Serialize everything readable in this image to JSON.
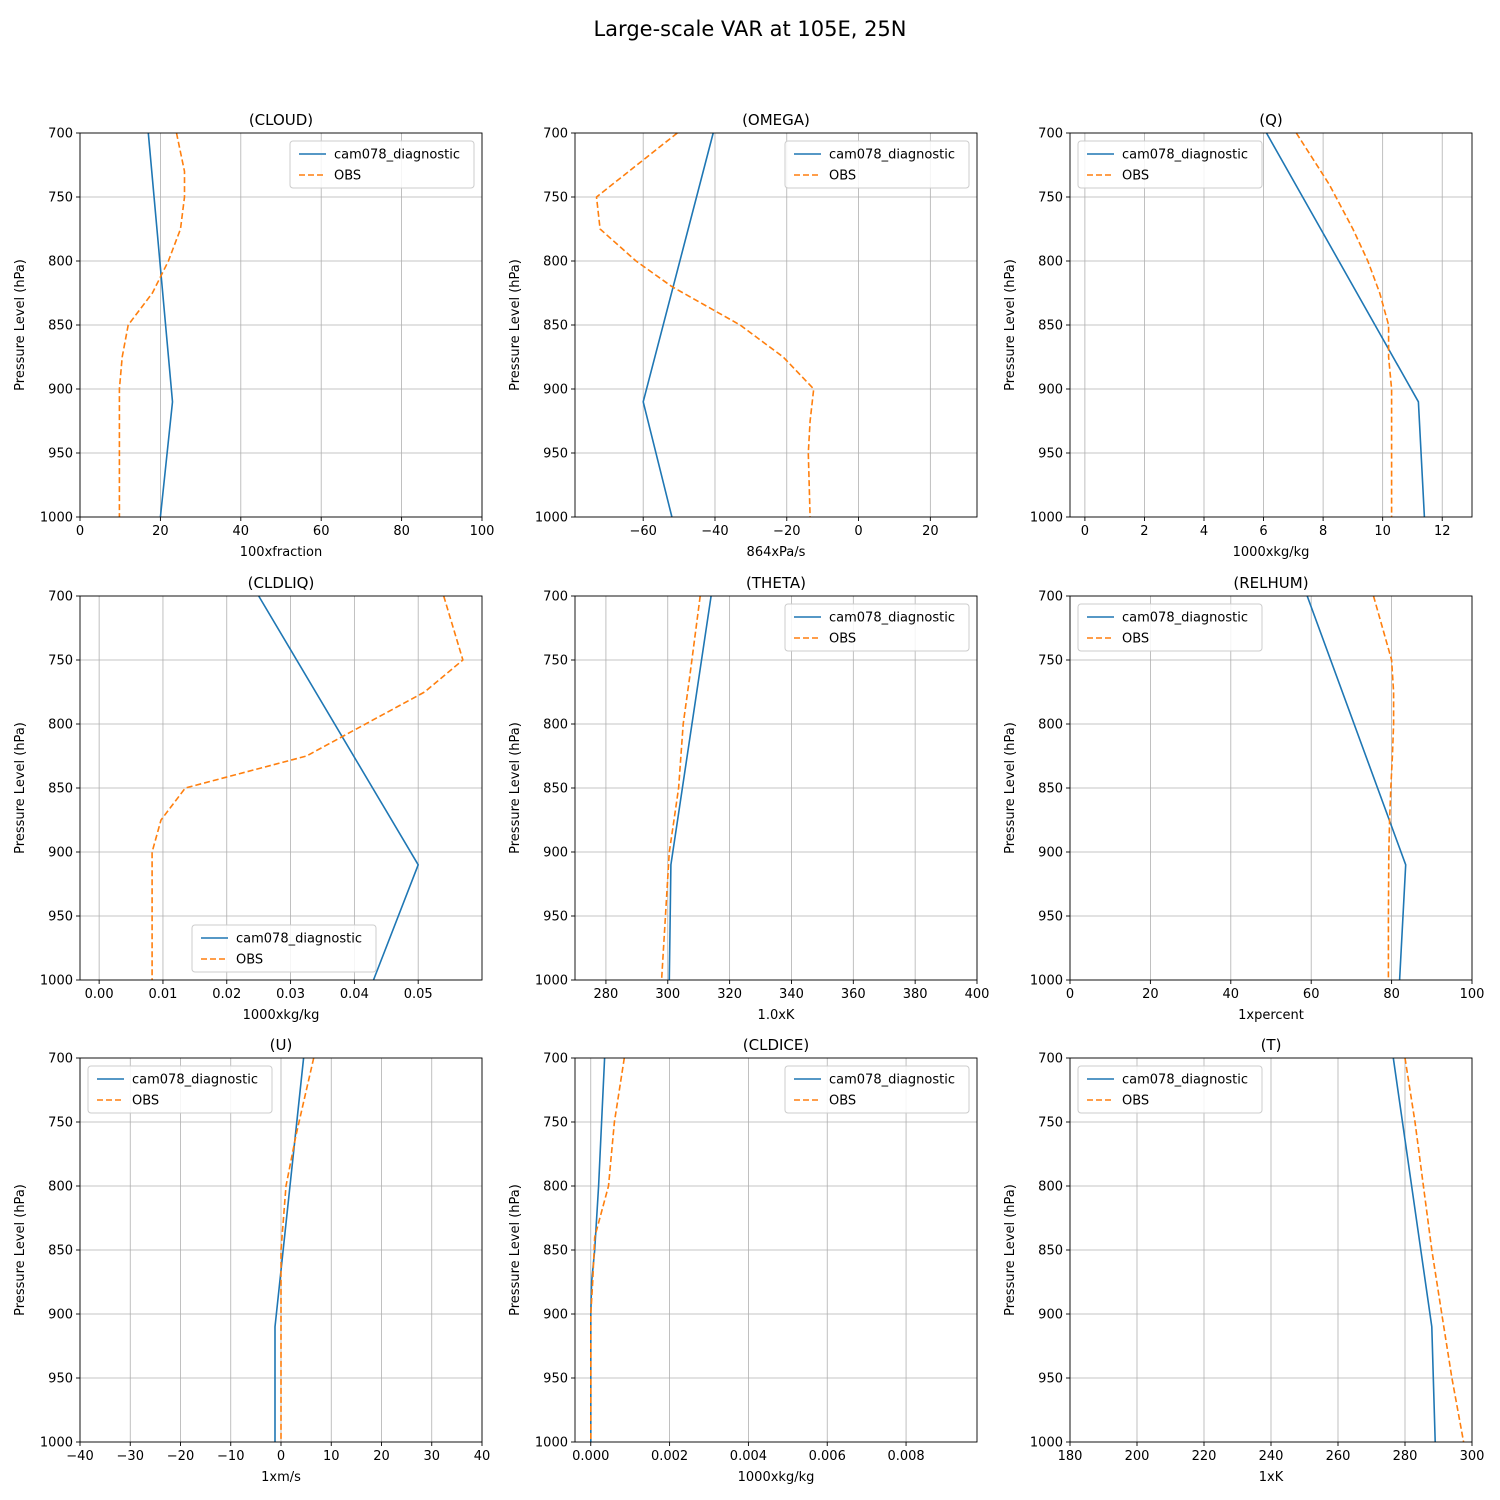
{
  "figure": {
    "title": "Large-scale VAR at 105E, 25N"
  },
  "chart_data": [
    {
      "type": "line",
      "title": "(CLOUD)",
      "xlabel": "100xfraction",
      "ylabel": "Pressure Level (hPa)",
      "xlim": [
        0,
        100
      ],
      "ylim": [
        1000,
        700
      ],
      "y_inverted": true,
      "xticks": [
        0,
        20,
        40,
        60,
        80,
        100
      ],
      "xtick_labels": [
        "0",
        "20",
        "40",
        "60",
        "80",
        "100"
      ],
      "yticks": [
        700,
        750,
        800,
        850,
        900,
        950,
        1000
      ],
      "ytick_labels": [
        "700",
        "750",
        "800",
        "850",
        "900",
        "950",
        "1000"
      ],
      "grid": true,
      "legend": "upper-right",
      "series": [
        {
          "name": "cam078_diagnostic",
          "color": "#1f77b4",
          "style": "solid",
          "x": [
            17,
            23,
            20
          ],
          "y": [
            700,
            910,
            1000
          ]
        },
        {
          "name": "OBS",
          "color": "#ff7f0e",
          "style": "dashed",
          "x": [
            24,
            26,
            26,
            25,
            22,
            18,
            12,
            10.5,
            9.8,
            9.8,
            9.8,
            9.8
          ],
          "y": [
            700,
            730,
            750,
            775,
            800,
            825,
            850,
            875,
            900,
            925,
            950,
            1000
          ]
        }
      ]
    },
    {
      "type": "line",
      "title": "(OMEGA)",
      "xlabel": "864xPa/s",
      "ylabel": "Pressure Level (hPa)",
      "xlim": [
        -79,
        33
      ],
      "ylim": [
        1000,
        700
      ],
      "y_inverted": true,
      "xticks": [
        -60,
        -40,
        -20,
        0,
        20
      ],
      "xtick_labels": [
        "−60",
        "−40",
        "−20",
        "0",
        "20"
      ],
      "yticks": [
        700,
        750,
        800,
        850,
        900,
        950,
        1000
      ],
      "ytick_labels": [
        "700",
        "750",
        "800",
        "850",
        "900",
        "950",
        "1000"
      ],
      "grid": true,
      "legend": "upper-right",
      "series": [
        {
          "name": "cam078_diagnostic",
          "color": "#1f77b4",
          "style": "solid",
          "x": [
            -40.5,
            -60,
            -52
          ],
          "y": [
            700,
            910,
            1000
          ]
        },
        {
          "name": "OBS",
          "color": "#ff7f0e",
          "style": "dashed",
          "x": [
            -50.5,
            -73,
            -72,
            -62,
            -52,
            -33,
            -21,
            -12.5,
            -13.5,
            -14,
            -13.5
          ],
          "y": [
            700,
            750,
            775,
            800,
            820,
            850,
            875,
            900,
            925,
            950,
            1000
          ]
        }
      ]
    },
    {
      "type": "line",
      "title": "(Q)",
      "xlabel": "1000xkg/kg",
      "ylabel": "Pressure Level (hPa)",
      "xlim": [
        -0.5,
        13
      ],
      "ylim": [
        1000,
        700
      ],
      "y_inverted": true,
      "xticks": [
        0,
        2,
        4,
        6,
        8,
        10,
        12
      ],
      "xtick_labels": [
        "0",
        "2",
        "4",
        "6",
        "8",
        "10",
        "12"
      ],
      "yticks": [
        700,
        750,
        800,
        850,
        900,
        950,
        1000
      ],
      "ytick_labels": [
        "700",
        "750",
        "800",
        "850",
        "900",
        "950",
        "1000"
      ],
      "grid": true,
      "legend": "upper-left",
      "series": [
        {
          "name": "cam078_diagnostic",
          "color": "#1f77b4",
          "style": "solid",
          "x": [
            6.1,
            11.2,
            11.4
          ],
          "y": [
            700,
            910,
            1000
          ]
        },
        {
          "name": "OBS",
          "color": "#ff7f0e",
          "style": "dashed",
          "x": [
            7.1,
            8.2,
            9.0,
            9.5,
            9.9,
            10.2,
            10.2,
            10.3,
            10.3,
            10.3
          ],
          "y": [
            700,
            740,
            775,
            800,
            825,
            850,
            875,
            900,
            950,
            1000
          ]
        }
      ]
    },
    {
      "type": "line",
      "title": "(CLDLIQ)",
      "xlabel": "1000xkg/kg",
      "ylabel": "Pressure Level (hPa)",
      "xlim": [
        -0.003,
        0.06
      ],
      "ylim": [
        1000,
        700
      ],
      "y_inverted": true,
      "xticks": [
        0,
        0.01,
        0.02,
        0.03,
        0.04,
        0.05
      ],
      "xtick_labels": [
        "0.00",
        "0.01",
        "0.02",
        "0.03",
        "0.04",
        "0.05"
      ],
      "yticks": [
        700,
        750,
        800,
        850,
        900,
        950,
        1000
      ],
      "ytick_labels": [
        "700",
        "750",
        "800",
        "850",
        "900",
        "950",
        "1000"
      ],
      "grid": true,
      "legend": "lower-center",
      "series": [
        {
          "name": "cam078_diagnostic",
          "color": "#1f77b4",
          "style": "solid",
          "x": [
            0.025,
            0.05,
            0.043
          ],
          "y": [
            700,
            910,
            1000
          ]
        },
        {
          "name": "OBS",
          "color": "#ff7f0e",
          "style": "dashed",
          "x": [
            0.054,
            0.057,
            0.051,
            0.0325,
            0.0135,
            0.0097,
            0.0083,
            0.0083,
            0.0083
          ],
          "y": [
            700,
            750,
            775,
            825,
            850,
            875,
            900,
            950,
            1000
          ]
        }
      ]
    },
    {
      "type": "line",
      "title": "(THETA)",
      "xlabel": "1.0xK",
      "ylabel": "Pressure Level (hPa)",
      "xlim": [
        270,
        400
      ],
      "ylim": [
        1000,
        700
      ],
      "y_inverted": true,
      "xticks": [
        280,
        300,
        320,
        340,
        360,
        380,
        400
      ],
      "xtick_labels": [
        "280",
        "300",
        "320",
        "340",
        "360",
        "380",
        "400"
      ],
      "yticks": [
        700,
        750,
        800,
        850,
        900,
        950,
        1000
      ],
      "ytick_labels": [
        "700",
        "750",
        "800",
        "850",
        "900",
        "950",
        "1000"
      ],
      "grid": true,
      "legend": "upper-right",
      "series": [
        {
          "name": "cam078_diagnostic",
          "color": "#1f77b4",
          "style": "solid",
          "x": [
            314,
            301,
            300.5
          ],
          "y": [
            700,
            910,
            1000
          ]
        },
        {
          "name": "OBS",
          "color": "#ff7f0e",
          "style": "dashed",
          "x": [
            310.5,
            307,
            305,
            303.5,
            302,
            300.5,
            298
          ],
          "y": [
            700,
            765,
            800,
            850,
            875,
            900,
            1000
          ]
        }
      ]
    },
    {
      "type": "line",
      "title": "(RELHUM)",
      "xlabel": "1xpercent",
      "ylabel": "Pressure Level (hPa)",
      "xlim": [
        0,
        100
      ],
      "ylim": [
        1000,
        700
      ],
      "y_inverted": true,
      "xticks": [
        0,
        20,
        40,
        60,
        80,
        100
      ],
      "xtick_labels": [
        "0",
        "20",
        "40",
        "60",
        "80",
        "100"
      ],
      "yticks": [
        700,
        750,
        800,
        850,
        900,
        950,
        1000
      ],
      "ytick_labels": [
        "700",
        "750",
        "800",
        "850",
        "900",
        "950",
        "1000"
      ],
      "grid": true,
      "legend": "upper-left",
      "series": [
        {
          "name": "cam078_diagnostic",
          "color": "#1f77b4",
          "style": "solid",
          "x": [
            59,
            83.5,
            82
          ],
          "y": [
            700,
            910,
            1000
          ]
        },
        {
          "name": "OBS",
          "color": "#ff7f0e",
          "style": "dashed",
          "x": [
            75.5,
            80,
            80.5,
            80.5,
            80.2,
            79.8,
            79.5,
            79.3,
            79.2,
            79.2
          ],
          "y": [
            700,
            750,
            775,
            800,
            825,
            850,
            875,
            900,
            950,
            1000
          ]
        }
      ]
    },
    {
      "type": "line",
      "title": "(U)",
      "xlabel": "1xm/s",
      "ylabel": "Pressure Level (hPa)",
      "xlim": [
        -40,
        40
      ],
      "ylim": [
        1000,
        700
      ],
      "y_inverted": true,
      "xticks": [
        -40,
        -30,
        -20,
        -10,
        0,
        10,
        20,
        30,
        40
      ],
      "xtick_labels": [
        "−40",
        "−30",
        "−20",
        "−10",
        "0",
        "10",
        "20",
        "30",
        "40"
      ],
      "yticks": [
        700,
        750,
        800,
        850,
        900,
        950,
        1000
      ],
      "ytick_labels": [
        "700",
        "750",
        "800",
        "850",
        "900",
        "950",
        "1000"
      ],
      "grid": true,
      "legend": "upper-left",
      "series": [
        {
          "name": "cam078_diagnostic",
          "color": "#1f77b4",
          "style": "solid",
          "x": [
            4.5,
            -1.2,
            -1.2
          ],
          "y": [
            700,
            910,
            1000
          ]
        },
        {
          "name": "OBS",
          "color": "#ff7f0e",
          "style": "dashed",
          "x": [
            6.5,
            3,
            1,
            0,
            0,
            0,
            0
          ],
          "y": [
            700,
            760,
            800,
            850,
            900,
            950,
            1000
          ]
        }
      ]
    },
    {
      "type": "line",
      "title": "(CLDICE)",
      "xlabel": "1000xkg/kg",
      "ylabel": "Pressure Level (hPa)",
      "xlim": [
        -0.0004,
        0.0098
      ],
      "ylim": [
        1000,
        700
      ],
      "y_inverted": true,
      "xticks": [
        0,
        0.002,
        0.004,
        0.006,
        0.008
      ],
      "xtick_labels": [
        "0.000",
        "0.002",
        "0.004",
        "0.006",
        "0.008"
      ],
      "yticks": [
        700,
        750,
        800,
        850,
        900,
        950,
        1000
      ],
      "ytick_labels": [
        "700",
        "750",
        "800",
        "850",
        "900",
        "950",
        "1000"
      ],
      "grid": true,
      "legend": "upper-right",
      "series": [
        {
          "name": "cam078_diagnostic",
          "color": "#1f77b4",
          "style": "solid",
          "x": [
            0.00035,
            0.0002,
            0.0001,
            2e-05,
            0,
            0,
            0
          ],
          "y": [
            700,
            800,
            850,
            875,
            900,
            950,
            1000
          ]
        },
        {
          "name": "OBS",
          "color": "#ff7f0e",
          "style": "dashed",
          "x": [
            0.00085,
            0.0006,
            0.00045,
            0.0001,
            5e-05,
            0,
            0,
            0
          ],
          "y": [
            700,
            750,
            800,
            840,
            875,
            900,
            950,
            1000
          ]
        }
      ]
    },
    {
      "type": "line",
      "title": "(T)",
      "xlabel": "1xK",
      "ylabel": "Pressure Level (hPa)",
      "xlim": [
        180,
        300
      ],
      "ylim": [
        1000,
        700
      ],
      "y_inverted": true,
      "xticks": [
        180,
        200,
        220,
        240,
        260,
        280,
        300
      ],
      "xtick_labels": [
        "180",
        "200",
        "220",
        "240",
        "260",
        "280",
        "300"
      ],
      "yticks": [
        700,
        750,
        800,
        850,
        900,
        950,
        1000
      ],
      "ytick_labels": [
        "700",
        "750",
        "800",
        "850",
        "900",
        "950",
        "1000"
      ],
      "grid": true,
      "legend": "upper-left",
      "series": [
        {
          "name": "cam078_diagnostic",
          "color": "#1f77b4",
          "style": "solid",
          "x": [
            276.5,
            288,
            289
          ],
          "y": [
            700,
            910,
            1000
          ]
        },
        {
          "name": "OBS",
          "color": "#ff7f0e",
          "style": "dashed",
          "x": [
            280,
            283,
            285.5,
            288,
            291,
            294,
            297.5
          ],
          "y": [
            700,
            750,
            800,
            850,
            900,
            950,
            1000
          ]
        }
      ]
    }
  ]
}
